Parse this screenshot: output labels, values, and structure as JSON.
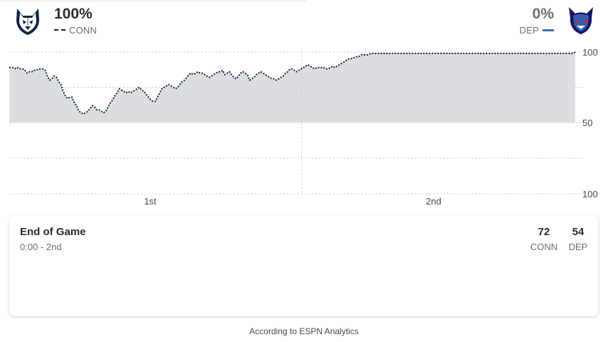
{
  "teams": {
    "home": {
      "abbr": "CONN",
      "win_pct": "100%",
      "logo": "uconn-husky-icon",
      "line_color": "#0c2340"
    },
    "away": {
      "abbr": "DEP",
      "win_pct": "0%",
      "logo": "depaul-blue-demon-icon",
      "line_color": "#3d6db5"
    }
  },
  "chart_data": {
    "type": "line",
    "title": "",
    "xlabel": "",
    "ylabel": "",
    "x_ticks": [
      "1st",
      "2nd"
    ],
    "y_ticks": [
      "100",
      "50",
      "100"
    ],
    "y_values_range": [
      0,
      100
    ],
    "fill_color": "#dcdde0",
    "series": [
      {
        "values": [
          89,
          89,
          89,
          88,
          89,
          88,
          88,
          87,
          85,
          86,
          86,
          87,
          87,
          88,
          88,
          88,
          87,
          83,
          80,
          81,
          83,
          82,
          79,
          77,
          72,
          69,
          67,
          68,
          68,
          64,
          62,
          58,
          57,
          56,
          57,
          58,
          60,
          62,
          61,
          59,
          59,
          58,
          57,
          58,
          61,
          64,
          66,
          69,
          71,
          74,
          73,
          72,
          71,
          72,
          71,
          72,
          73,
          74,
          75,
          73,
          72,
          70,
          68,
          66,
          65,
          65,
          68,
          71,
          74,
          75,
          76,
          77,
          76,
          75,
          74,
          75,
          77,
          79,
          80,
          82,
          84,
          85,
          84,
          85,
          86,
          85,
          85,
          84,
          83,
          82,
          83,
          84,
          85,
          86,
          86,
          87,
          84,
          85,
          86,
          84,
          82,
          81,
          83,
          85,
          86,
          85,
          84,
          80,
          81,
          82,
          84,
          85,
          86,
          85,
          84,
          83,
          82,
          81,
          81,
          80,
          81,
          82,
          83,
          85,
          86,
          88,
          88,
          87,
          86,
          87,
          88,
          89,
          90,
          91,
          90,
          89,
          88,
          89,
          89,
          89,
          89,
          88,
          88,
          89,
          90,
          89,
          90,
          91,
          92,
          93,
          94,
          95,
          95,
          96,
          96,
          97,
          97,
          98,
          98,
          98,
          98,
          99,
          99,
          99,
          99,
          99,
          99,
          99,
          99,
          99,
          99,
          99,
          99,
          99,
          99,
          99,
          99,
          99,
          99,
          99,
          99,
          99,
          99,
          99,
          99,
          99,
          99,
          99,
          99,
          99,
          99,
          99,
          99,
          99,
          99,
          99,
          99,
          99,
          99,
          99,
          99,
          99,
          99,
          99,
          99,
          99,
          99,
          99,
          99,
          99,
          99,
          99,
          99,
          99,
          99,
          99,
          99,
          99,
          99,
          99,
          99,
          99,
          99,
          99,
          99,
          99,
          99,
          99,
          99,
          99,
          99,
          99,
          99,
          99,
          99,
          99,
          99,
          99,
          99,
          99,
          99,
          99,
          99,
          99,
          99,
          99,
          99,
          99,
          99,
          99,
          99,
          99,
          100
        ]
      }
    ]
  },
  "game": {
    "status": "End of Game",
    "clock": "0:00 - 2nd",
    "home_score": "72",
    "away_score": "54"
  },
  "footer": "According to ESPN Analytics"
}
